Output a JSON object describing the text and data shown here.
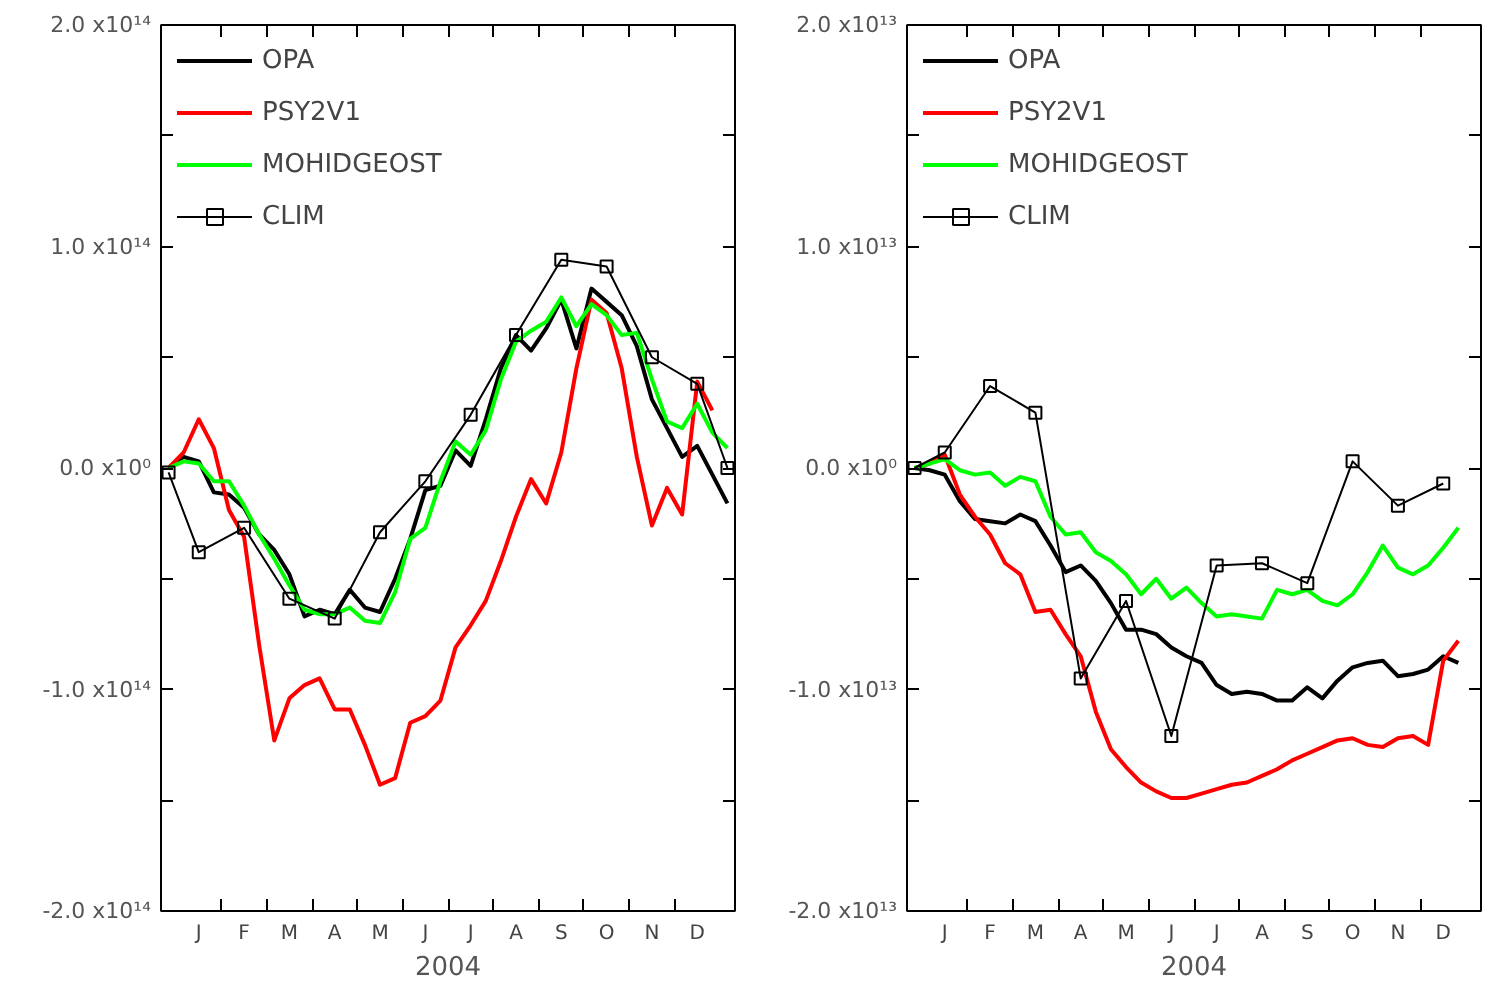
{
  "chart_data": [
    {
      "type": "line",
      "xlabel": "2004",
      "legend": "top left",
      "ylim": [
        -200000000000000.0,
        200000000000000.0
      ],
      "yticks": [
        {
          "value": -200000000000000.0,
          "label": "-2.0 x10¹⁴"
        },
        {
          "value": -150000000000000.0,
          "label": null
        },
        {
          "value": -100000000000000.0,
          "label": "-1.0 x10¹⁴"
        },
        {
          "value": -50000000000000.0,
          "label": null
        },
        {
          "value": 0,
          "label": "0.0 x10⁰"
        },
        {
          "value": 50000000000000.0,
          "label": null
        },
        {
          "value": 100000000000000.0,
          "label": "1.0 x10¹⁴"
        },
        {
          "value": 150000000000000.0,
          "label": null
        },
        {
          "value": 200000000000000.0,
          "label": "2.0 x10¹⁴"
        }
      ],
      "categories": [
        null,
        null,
        "J",
        null,
        null,
        "F",
        null,
        null,
        "M",
        null,
        null,
        "A",
        null,
        null,
        "M",
        null,
        null,
        "J",
        null,
        null,
        "J",
        null,
        null,
        "A",
        null,
        null,
        "S",
        null,
        null,
        "O",
        null,
        null,
        "N",
        null,
        null,
        "D",
        null,
        null
      ],
      "series": [
        {
          "name": "OPA",
          "color": "#000000",
          "values": [
            0,
            5000000000000.0,
            3000000000000.0,
            -11000000000000.0,
            -12000000000000.0,
            -18000000000000.0,
            -30000000000000.0,
            -37000000000000.0,
            -48000000000000.0,
            -67000000000000.0,
            -64000000000000.0,
            -66000000000000.0,
            -55000000000000.0,
            -63000000000000.0,
            -65000000000000.0,
            -50000000000000.0,
            -32000000000000.0,
            -10000000000000.0,
            -8000000000000.0,
            8000000000000.0,
            1000000000000.0,
            22000000000000.0,
            45000000000000.0,
            60000000000000.0,
            53000000000000.0,
            63000000000000.0,
            76000000000000.0,
            54000000000000.0,
            81000000000000.0,
            75000000000000.0,
            69000000000000.0,
            55000000000000.0,
            31000000000000.0,
            18000000000000.0,
            5000000000000.0,
            10000000000000.0,
            -3000000000000.0,
            -16000000000000.0
          ]
        },
        {
          "name": "PSY2V1",
          "color": "#ff0000",
          "values": [
            0,
            7000000000000.0,
            22000000000000.0,
            9000000000000.0,
            -19000000000000.0,
            -31000000000000.0,
            -80000000000000.0,
            -123000000000000.0,
            -104000000000000.0,
            -98000000000000.0,
            -95000000000000.0,
            -109000000000000.0,
            -109000000000000.0,
            -125000000000000.0,
            -143000000000000.0,
            -140000000000000.0,
            -115000000000000.0,
            -112000000000000.0,
            -105000000000000.0,
            -81000000000000.0,
            -71000000000000.0,
            -60000000000000.0,
            -42000000000000.0,
            -22000000000000.0,
            -5000000000000.0,
            -16000000000000.0,
            7000000000000.0,
            45000000000000.0,
            76000000000000.0,
            70000000000000.0,
            45000000000000.0,
            5000000000000.0,
            -26000000000000.0,
            -9000000000000.0,
            -21000000000000.0,
            39000000000000.0,
            26000000000000.0,
            null
          ]
        },
        {
          "name": "MOHIDGEOST",
          "color": "#00ff00",
          "values": [
            0,
            3000000000000.0,
            2000000000000.0,
            -6000000000000.0,
            -6000000000000.0,
            -17000000000000.0,
            -30000000000000.0,
            -41000000000000.0,
            -53000000000000.0,
            -64000000000000.0,
            -66000000000000.0,
            -66000000000000.0,
            -63000000000000.0,
            -69000000000000.0,
            -70000000000000.0,
            -56000000000000.0,
            -32000000000000.0,
            -27000000000000.0,
            -6000000000000.0,
            12000000000000.0,
            6000000000000.0,
            17000000000000.0,
            40000000000000.0,
            57000000000000.0,
            62000000000000.0,
            66000000000000.0,
            77000000000000.0,
            64000000000000.0,
            74000000000000.0,
            69000000000000.0,
            60000000000000.0,
            61000000000000.0,
            40000000000000.0,
            21000000000000.0,
            18000000000000.0,
            29000000000000.0,
            16000000000000.0,
            9000000000000.0
          ]
        },
        {
          "name": "CLIM",
          "color": "#000000",
          "marker": "square",
          "values": [
            -2000000000000.0,
            null,
            -38000000000000.0,
            null,
            null,
            -27000000000000.0,
            null,
            null,
            -59000000000000.0,
            null,
            null,
            -68000000000000.0,
            null,
            null,
            -29000000000000.0,
            null,
            null,
            -6000000000000.0,
            null,
            null,
            24000000000000.0,
            null,
            null,
            60000000000000.0,
            null,
            null,
            94000000000000.0,
            null,
            null,
            91000000000000.0,
            null,
            null,
            50000000000000.0,
            null,
            null,
            38000000000000.0,
            null,
            0
          ]
        }
      ]
    },
    {
      "type": "line",
      "xlabel": "2004",
      "legend": "top left",
      "ylim": [
        -20000000000000.0,
        20000000000000.0
      ],
      "yticks": [
        {
          "value": -20000000000000.0,
          "label": "-2.0 x10¹³"
        },
        {
          "value": -15000000000000.0,
          "label": null
        },
        {
          "value": -10000000000000.0,
          "label": "-1.0 x10¹³"
        },
        {
          "value": -5000000000000.0,
          "label": null
        },
        {
          "value": 0,
          "label": "0.0 x10⁰"
        },
        {
          "value": 5000000000000.0,
          "label": null
        },
        {
          "value": 10000000000000.0,
          "label": "1.0 x10¹³"
        },
        {
          "value": 15000000000000.0,
          "label": null
        },
        {
          "value": 20000000000000.0,
          "label": "2.0 x10¹³"
        }
      ],
      "categories": [
        null,
        null,
        "J",
        null,
        null,
        "F",
        null,
        null,
        "M",
        null,
        null,
        "A",
        null,
        null,
        "M",
        null,
        null,
        "J",
        null,
        null,
        "J",
        null,
        null,
        "A",
        null,
        null,
        "S",
        null,
        null,
        "O",
        null,
        null,
        "N",
        null,
        null,
        "D",
        null,
        null
      ],
      "series": [
        {
          "name": "OPA",
          "color": "#000000",
          "values": [
            0,
            -100000000000.0,
            -300000000000.0,
            -1500000000000.0,
            -2300000000000.0,
            -2400000000000.0,
            -2500000000000.0,
            -2100000000000.0,
            -2400000000000.0,
            -3500000000000.0,
            -4700000000000.0,
            -4400000000000.0,
            -5100000000000.0,
            -6100000000000.0,
            -7300000000000.0,
            -7300000000000.0,
            -7500000000000.0,
            -8100000000000.0,
            -8500000000000.0,
            -8800000000000.0,
            -9800000000000.0,
            -10200000000000.0,
            -10100000000000.0,
            -10200000000000.0,
            -10500000000000.0,
            -10500000000000.0,
            -9900000000000.0,
            -10400000000000.0,
            -9600000000000.0,
            -9000000000000.0,
            -8800000000000.0,
            -8700000000000.0,
            -9400000000000.0,
            -9300000000000.0,
            -9100000000000.0,
            -8500000000000.0,
            -8800000000000.0,
            null
          ]
        },
        {
          "name": "PSY2V1",
          "color": "#ff0000",
          "values": [
            0,
            200000000000.0,
            600000000000.0,
            -1200000000000.0,
            -2200000000000.0,
            -3000000000000.0,
            -4300000000000.0,
            -4800000000000.0,
            -6500000000000.0,
            -6400000000000.0,
            -7500000000000.0,
            -8500000000000.0,
            -11000000000000.0,
            -12700000000000.0,
            -13500000000000.0,
            -14200000000000.0,
            -14600000000000.0,
            -14900000000000.0,
            -14900000000000.0,
            -14700000000000.0,
            -14500000000000.0,
            -14300000000000.0,
            -14200000000000.0,
            -13900000000000.0,
            -13600000000000.0,
            -13200000000000.0,
            -12900000000000.0,
            -12600000000000.0,
            -12300000000000.0,
            -12200000000000.0,
            -12500000000000.0,
            -12600000000000.0,
            -12200000000000.0,
            -12100000000000.0,
            -12500000000000.0,
            -8700000000000.0,
            -7800000000000.0,
            null
          ]
        },
        {
          "name": "MOHIDGEOST",
          "color": "#00ff00",
          "values": [
            0,
            200000000000.0,
            400000000000.0,
            -100000000000.0,
            -300000000000.0,
            -200000000000.0,
            -800000000000.0,
            -400000000000.0,
            -600000000000.0,
            -2200000000000.0,
            -3000000000000.0,
            -2900000000000.0,
            -3800000000000.0,
            -4200000000000.0,
            -4800000000000.0,
            -5700000000000.0,
            -5000000000000.0,
            -5900000000000.0,
            -5400000000000.0,
            -6100000000000.0,
            -6700000000000.0,
            -6600000000000.0,
            -6700000000000.0,
            -6800000000000.0,
            -5500000000000.0,
            -5700000000000.0,
            -5500000000000.0,
            -6000000000000.0,
            -6200000000000.0,
            -5700000000000.0,
            -4700000000000.0,
            -3500000000000.0,
            -4500000000000.0,
            -4800000000000.0,
            -4400000000000.0,
            -3600000000000.0,
            -2700000000000.0,
            null
          ]
        },
        {
          "name": "CLIM",
          "color": "#000000",
          "marker": "square",
          "values": [
            0,
            null,
            700000000000.0,
            null,
            null,
            3700000000000.0,
            null,
            null,
            2500000000000.0,
            null,
            null,
            -9500000000000.0,
            null,
            null,
            -6000000000000.0,
            null,
            null,
            -12100000000000.0,
            null,
            null,
            -4400000000000.0,
            null,
            null,
            -4300000000000.0,
            null,
            null,
            -5200000000000.0,
            null,
            null,
            300000000000.0,
            null,
            null,
            -1700000000000.0,
            null,
            null,
            -700000000000.0,
            null,
            null
          ]
        }
      ]
    }
  ]
}
